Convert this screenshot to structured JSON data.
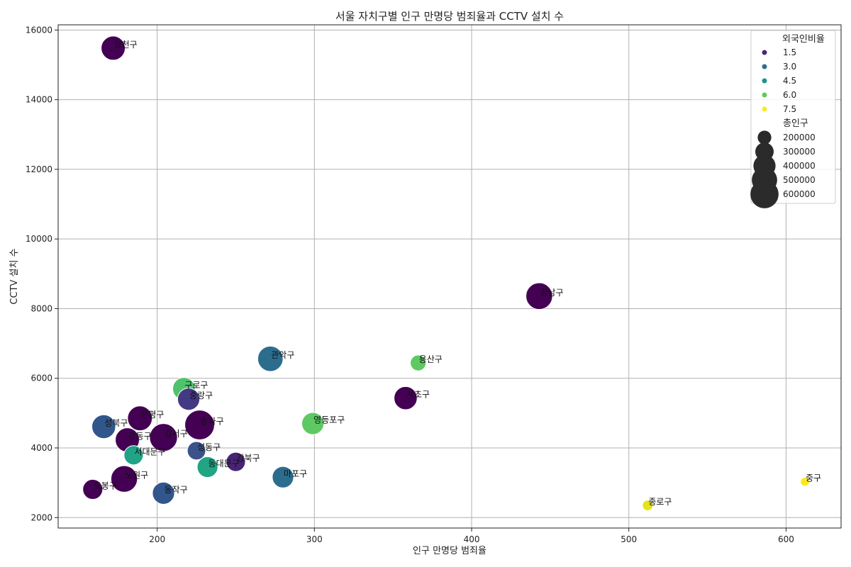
{
  "chart_data": {
    "type": "scatter",
    "title": "서울 자치구별 인구 만명당 범죄율과 CCTV 설치 수",
    "xlabel": "인구 만명당 범죄율",
    "ylabel": "CCTV 설치 수",
    "xlim": [
      137,
      635
    ],
    "ylim": [
      1700,
      16150
    ],
    "xticks": [
      200,
      300,
      400,
      500,
      600
    ],
    "yticks": [
      2000,
      4000,
      6000,
      8000,
      10000,
      12000,
      14000,
      16000
    ],
    "grid": true,
    "legend_position": "top-right",
    "hue_legend": {
      "title": "외국인비율",
      "entries": [
        {
          "label": "1.5",
          "color": "#482878"
        },
        {
          "label": "3.0",
          "color": "#2e6e8e"
        },
        {
          "label": "4.5",
          "color": "#21918c"
        },
        {
          "label": "6.0",
          "color": "#5ec962"
        },
        {
          "label": "7.5",
          "color": "#fde725"
        }
      ]
    },
    "size_legend": {
      "title": "총인구",
      "entries": [
        {
          "label": "200000",
          "value": 200000
        },
        {
          "label": "300000",
          "value": 300000
        },
        {
          "label": "400000",
          "value": 400000
        },
        {
          "label": "500000",
          "value": 500000
        },
        {
          "label": "600000",
          "value": 600000
        }
      ]
    },
    "points": [
      {
        "name": "양천구",
        "x": 172,
        "y": 15480,
        "pop": 460000,
        "color": "#440154"
      },
      {
        "name": "강남구",
        "x": 443,
        "y": 8360,
        "pop": 545000,
        "color": "#440154"
      },
      {
        "name": "관악구",
        "x": 272,
        "y": 6560,
        "pop": 500000,
        "color": "#2c6d8e"
      },
      {
        "name": "용산구",
        "x": 366,
        "y": 6440,
        "pop": 240000,
        "color": "#5ec962"
      },
      {
        "name": "구로구",
        "x": 217,
        "y": 5700,
        "pop": 410000,
        "color": "#4ec36b"
      },
      {
        "name": "중랑구",
        "x": 220,
        "y": 5400,
        "pop": 400000,
        "color": "#443983"
      },
      {
        "name": "서초구",
        "x": 358,
        "y": 5430,
        "pop": 430000,
        "color": "#440154"
      },
      {
        "name": "은평구",
        "x": 189,
        "y": 4850,
        "pop": 480000,
        "color": "#440154"
      },
      {
        "name": "영등포구",
        "x": 299,
        "y": 4700,
        "pop": 400000,
        "color": "#5ec962"
      },
      {
        "name": "송파구",
        "x": 227,
        "y": 4660,
        "pop": 660000,
        "color": "#440154"
      },
      {
        "name": "성북구",
        "x": 166,
        "y": 4610,
        "pop": 450000,
        "color": "#31568c"
      },
      {
        "name": "강동구",
        "x": 181,
        "y": 4230,
        "pop": 460000,
        "color": "#440154"
      },
      {
        "name": "강서구",
        "x": 204,
        "y": 4300,
        "pop": 590000,
        "color": "#440154"
      },
      {
        "name": "서대문구",
        "x": 185,
        "y": 3790,
        "pop": 320000,
        "color": "#20a386"
      },
      {
        "name": "성동구",
        "x": 225,
        "y": 3920,
        "pop": 300000,
        "color": "#3b528b"
      },
      {
        "name": "강북구",
        "x": 250,
        "y": 3600,
        "pop": 320000,
        "color": "#482475"
      },
      {
        "name": "동대문구",
        "x": 232,
        "y": 3450,
        "pop": 360000,
        "color": "#21a585"
      },
      {
        "name": "마포구",
        "x": 280,
        "y": 3160,
        "pop": 380000,
        "color": "#2c6d8e"
      },
      {
        "name": "노원구",
        "x": 179,
        "y": 3110,
        "pop": 540000,
        "color": "#440154"
      },
      {
        "name": "도봉구",
        "x": 159,
        "y": 2810,
        "pop": 340000,
        "color": "#440154"
      },
      {
        "name": "동작구",
        "x": 204,
        "y": 2700,
        "pop": 400000,
        "color": "#31568c"
      },
      {
        "name": "중구",
        "x": 612,
        "y": 3030,
        "pop": 130000,
        "color": "#fde725"
      },
      {
        "name": "종로구",
        "x": 512,
        "y": 2350,
        "pop": 150000,
        "color": "#e4e419"
      }
    ]
  }
}
